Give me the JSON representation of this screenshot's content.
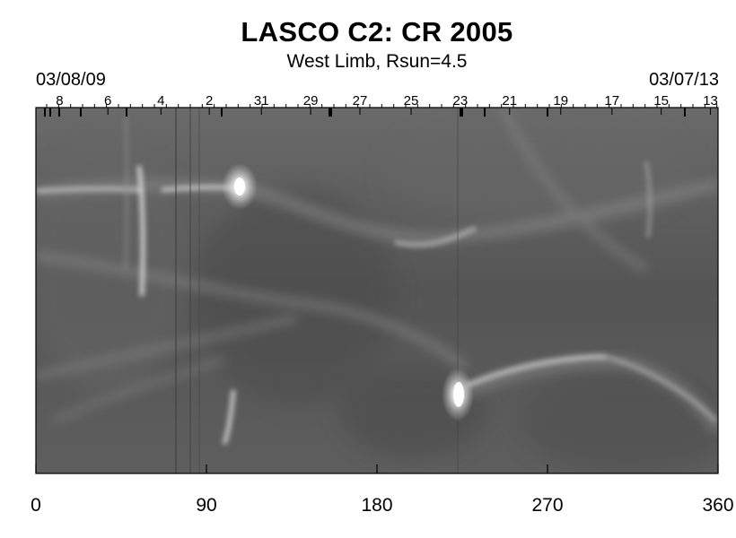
{
  "title": "LASCO C2: CR 2005",
  "subtitle": "West Limb, Rsun=4.5",
  "date_left": "03/08/09",
  "date_right": "03/07/13",
  "chart_data": {
    "type": "heatmap",
    "title": "LASCO C2: CR 2005",
    "subtitle": "West Limb, Rsun=4.5",
    "x_ticks": [
      0,
      90,
      180,
      270,
      360
    ],
    "xlim": [
      0,
      360
    ],
    "day_ticks": [
      {
        "label": "8",
        "x": 12.5
      },
      {
        "label": "6",
        "x": 38
      },
      {
        "label": "4",
        "x": 66
      },
      {
        "label": "2",
        "x": 91.5
      },
      {
        "label": "31",
        "x": 119
      },
      {
        "label": "29",
        "x": 145
      },
      {
        "label": "27",
        "x": 171
      },
      {
        "label": "25",
        "x": 198
      },
      {
        "label": "23",
        "x": 224
      },
      {
        "label": "21",
        "x": 250
      },
      {
        "label": "19",
        "x": 277
      },
      {
        "label": "17",
        "x": 304
      },
      {
        "label": "15",
        "x": 330
      },
      {
        "label": "13",
        "x": 356
      }
    ]
  }
}
